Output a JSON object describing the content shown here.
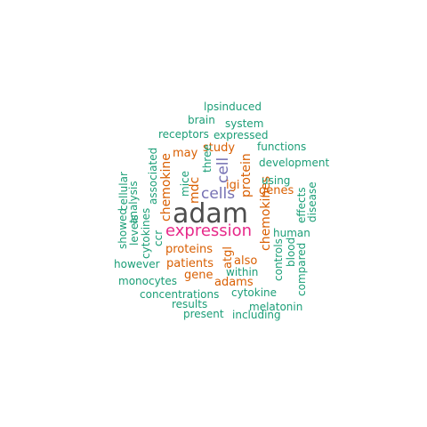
{
  "palette": {
    "dark": "#4d4d4d",
    "magenta": "#e7298a",
    "purple": "#7570b3",
    "orange": "#d95f02",
    "teal": "#1b9e77"
  },
  "words": [
    {
      "id": "adam",
      "text": "adam",
      "color": "dark"
    },
    {
      "id": "expression",
      "text": "expression",
      "color": "magenta"
    },
    {
      "id": "cells",
      "text": "cells",
      "color": "purple"
    },
    {
      "id": "cell",
      "text": "cell",
      "color": "purple"
    },
    {
      "id": "protein",
      "text": "protein",
      "color": "orange"
    },
    {
      "id": "chemokine",
      "text": "chemokine",
      "color": "orange"
    },
    {
      "id": "chemokines",
      "text": "chemokines",
      "color": "orange"
    },
    {
      "id": "mdc",
      "text": "mdc",
      "color": "orange"
    },
    {
      "id": "may",
      "text": "may",
      "color": "orange"
    },
    {
      "id": "study",
      "text": "study",
      "color": "orange"
    },
    {
      "id": "igi",
      "text": "igi",
      "color": "orange"
    },
    {
      "id": "genes",
      "text": "genes",
      "color": "orange"
    },
    {
      "id": "proteins",
      "text": "proteins",
      "color": "orange"
    },
    {
      "id": "patients",
      "text": "patients",
      "color": "orange"
    },
    {
      "id": "gene",
      "text": "gene",
      "color": "orange"
    },
    {
      "id": "adams",
      "text": "adams",
      "color": "orange"
    },
    {
      "id": "also",
      "text": "also",
      "color": "orange"
    },
    {
      "id": "atgl",
      "text": "atgl",
      "color": "orange"
    },
    {
      "id": "lpsinduced",
      "text": "lpsinduced",
      "color": "teal"
    },
    {
      "id": "brain",
      "text": "brain",
      "color": "teal"
    },
    {
      "id": "system",
      "text": "system",
      "color": "teal"
    },
    {
      "id": "receptors",
      "text": "receptors",
      "color": "teal"
    },
    {
      "id": "expressed",
      "text": "expressed",
      "color": "teal"
    },
    {
      "id": "functions",
      "text": "functions",
      "color": "teal"
    },
    {
      "id": "development",
      "text": "development",
      "color": "teal"
    },
    {
      "id": "associated",
      "text": "associated",
      "color": "teal"
    },
    {
      "id": "cellular",
      "text": "cellular",
      "color": "teal"
    },
    {
      "id": "analysis",
      "text": "analysis",
      "color": "teal"
    },
    {
      "id": "levels",
      "text": "levels",
      "color": "teal"
    },
    {
      "id": "showed",
      "text": "showed",
      "color": "teal"
    },
    {
      "id": "cytokines",
      "text": "cytokines",
      "color": "teal"
    },
    {
      "id": "ccr",
      "text": "ccr",
      "color": "teal"
    },
    {
      "id": "mice",
      "text": "mice",
      "color": "teal"
    },
    {
      "id": "three",
      "text": "three",
      "color": "teal"
    },
    {
      "id": "using",
      "text": "using",
      "color": "teal"
    },
    {
      "id": "effects",
      "text": "effects",
      "color": "teal"
    },
    {
      "id": "disease",
      "text": "disease",
      "color": "teal"
    },
    {
      "id": "human",
      "text": "human",
      "color": "teal"
    },
    {
      "id": "controls",
      "text": "controls",
      "color": "teal"
    },
    {
      "id": "blood",
      "text": "blood",
      "color": "teal"
    },
    {
      "id": "compared",
      "text": "compared",
      "color": "teal"
    },
    {
      "id": "however",
      "text": "however",
      "color": "teal"
    },
    {
      "id": "within",
      "text": "within",
      "color": "teal"
    },
    {
      "id": "monocytes",
      "text": "monocytes",
      "color": "teal"
    },
    {
      "id": "cytokine",
      "text": "cytokine",
      "color": "teal"
    },
    {
      "id": "concentrations",
      "text": "concentrations",
      "color": "teal"
    },
    {
      "id": "results",
      "text": "results",
      "color": "teal"
    },
    {
      "id": "melatonin",
      "text": "melatonin",
      "color": "teal"
    },
    {
      "id": "present",
      "text": "present",
      "color": "teal"
    },
    {
      "id": "including",
      "text": "including",
      "color": "teal"
    }
  ]
}
